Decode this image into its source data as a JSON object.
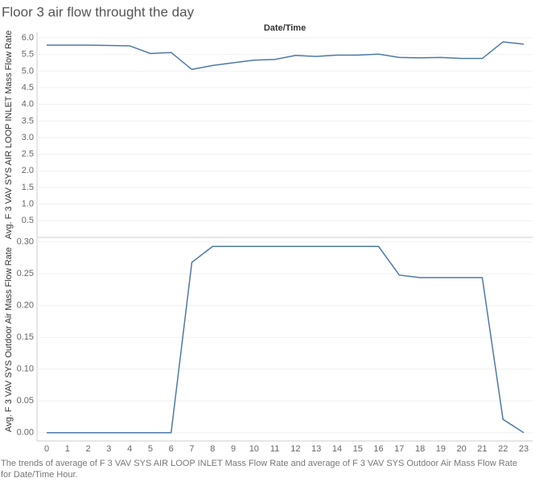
{
  "title": "Floor 3 air flow throught the day",
  "caption": "The trends of average of F 3 VAV SYS AIR LOOP INLET Mass Flow Rate and average of F 3 VAV SYS Outdoor Air Mass Flow Rate for Date/Time Hour.",
  "chart_data": [
    {
      "type": "line",
      "x_label": "Date/Time",
      "y_label": "Avg. F 3 VAV SYS AIR LOOP INLET Mass Flow Rate",
      "x": [
        0,
        1,
        2,
        3,
        4,
        5,
        6,
        7,
        8,
        9,
        10,
        11,
        12,
        13,
        14,
        15,
        16,
        17,
        18,
        19,
        20,
        21,
        22,
        23
      ],
      "xlim": [
        0,
        23
      ],
      "series": [
        {
          "color": "#4e79a7",
          "values": [
            5.78,
            5.78,
            5.78,
            5.77,
            5.76,
            5.53,
            5.56,
            5.05,
            5.17,
            5.25,
            5.33,
            5.35,
            5.47,
            5.44,
            5.48,
            5.48,
            5.51,
            5.41,
            5.4,
            5.41,
            5.38,
            5.38,
            5.88,
            5.81
          ]
        }
      ],
      "ylim": [
        0,
        6.17
      ],
      "yticks": [
        {
          "value": 0.5,
          "label": "0.5"
        },
        {
          "value": 1,
          "label": "1.0"
        },
        1.5,
        {
          "value": 2,
          "label": "2.0"
        },
        2.5,
        {
          "value": 3,
          "label": "3.0"
        },
        3.5,
        {
          "value": 4,
          "label": "4.0"
        },
        4.5,
        {
          "value": 5,
          "label": "5.0"
        },
        5.5,
        {
          "value": 6,
          "label": "6.0"
        }
      ],
      "grid": true
    },
    {
      "type": "line",
      "y_label": "Avg. F 3 VAV SYS Outdoor Air Mass Flow Rate",
      "x": [
        0,
        1,
        2,
        3,
        4,
        5,
        6,
        7,
        8,
        9,
        10,
        11,
        12,
        13,
        14,
        15,
        16,
        17,
        18,
        19,
        20,
        21,
        22,
        23
      ],
      "xlim": [
        0,
        23
      ],
      "xticks": [
        0,
        1,
        2,
        3,
        4,
        5,
        6,
        7,
        8,
        9,
        10,
        11,
        12,
        13,
        14,
        15,
        16,
        17,
        18,
        19,
        20,
        21,
        22,
        23
      ],
      "series": [
        {
          "color": "#4e79a7",
          "values": [
            0,
            0,
            0,
            0,
            0,
            0,
            0,
            0.268,
            0.293,
            0.293,
            0.293,
            0.293,
            0.293,
            0.293,
            0.293,
            0.293,
            0.293,
            0.248,
            0.244,
            0.244,
            0.244,
            0.244,
            0.021,
            0
          ]
        }
      ],
      "ylim": [
        -0.013,
        0.306
      ],
      "yticks": [
        {
          "value": 0,
          "label": "0.00"
        },
        0.05,
        {
          "value": 0.1,
          "label": "0.10"
        },
        0.15,
        {
          "value": 0.2,
          "label": "0.20"
        },
        0.25,
        {
          "value": 0.3,
          "label": "0.30"
        }
      ],
      "grid": true
    }
  ]
}
